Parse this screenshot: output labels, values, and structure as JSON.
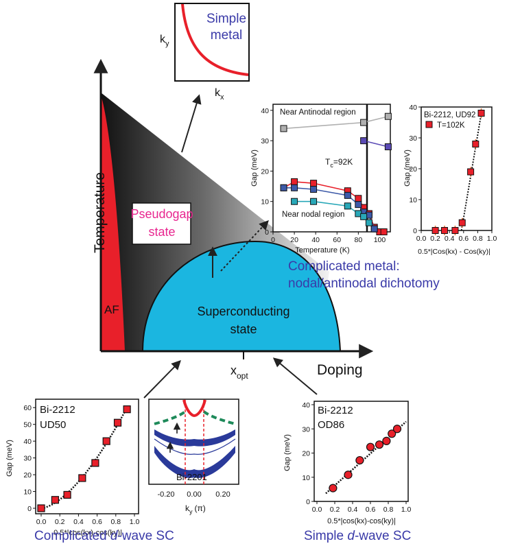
{
  "phase_diagram": {
    "y_axis_label": "Temperature",
    "x_axis_label": "Doping",
    "x_opt_label": "x",
    "x_opt_sub": "opt",
    "af_label": "AF",
    "pseudogap_line1": "Pseudogap",
    "pseudogap_line2": "state",
    "sc_line1": "Superconducting",
    "sc_line2": "state",
    "colors": {
      "af": "#e8202a",
      "sc": "#1bb6e0",
      "pseudogap_text": "#e8268f"
    }
  },
  "simple_metal_inset": {
    "title_line1": "Simple",
    "title_line2": "metal",
    "x_label": "k",
    "x_sub": "x",
    "y_label": "k",
    "y_sub": "y"
  },
  "inset_temperature": {
    "ylabel": "Gap (meV)",
    "xlabel": "Temperature (K)",
    "label_antinodal": "Near Antinodal region",
    "label_nodal": "Near nodal region",
    "tc_label_T": "T",
    "tc_label_sub": "c",
    "tc_label_rest": "=92K",
    "x_ticks": [
      "0",
      "20",
      "40",
      "60",
      "80",
      "100"
    ],
    "y_ticks": [
      "0",
      "10",
      "20",
      "30",
      "40"
    ]
  },
  "inset_ud92": {
    "title": "Bi-2212, UD92",
    "legend": "T=102K",
    "ylabel": "Gap (meV)",
    "xlabel": "0.5*|Cos(kx) - Cos(ky)|",
    "x_ticks": [
      "0.0",
      "0.2",
      "0.4",
      "0.6",
      "0.8",
      "1.0"
    ],
    "y_ticks": [
      "0",
      "10",
      "20",
      "30",
      "40"
    ]
  },
  "caption_metal_line1": "Complicated metal:",
  "caption_metal_line2": "nodal/antinodal dichotomy",
  "inset_ud50": {
    "title_line1": "Bi-2212",
    "title_line2": "UD50",
    "ylabel": "Gap (meV)",
    "xlabel": "0.5*|cos(kx)-cos(ky)|",
    "x_ticks": [
      "0.0",
      "0.2",
      "0.4",
      "0.6",
      "0.8",
      "1.0"
    ],
    "y_ticks": [
      "0",
      "10",
      "20",
      "30",
      "40",
      "50",
      "60"
    ]
  },
  "inset_2201": {
    "label": "Bi-2201",
    "xlabel_k": "k",
    "xlabel_sub": "y",
    "xlabel_unit": "(π)",
    "x_ticks": [
      "-0.20",
      "0.00",
      "0.20"
    ]
  },
  "inset_od86": {
    "title_line1": "Bi-2212",
    "title_line2": "OD86",
    "ylabel": "Gap (meV)",
    "xlabel": "0.5*|cos(kx)-cos(ky)|",
    "x_ticks": [
      "0.0",
      "0.2",
      "0.4",
      "0.6",
      "0.8",
      "1.0"
    ],
    "y_ticks": [
      "0",
      "10",
      "20",
      "30",
      "40"
    ]
  },
  "caption_complicated_d": {
    "pre": "Complicated ",
    "d": "d",
    "post": "-wave SC"
  },
  "caption_simple_d": {
    "pre": "Simple ",
    "d": "d",
    "post": "-wave SC"
  },
  "chart_data": [
    {
      "type": "scatter",
      "name": "gap-vs-temperature",
      "xlabel": "Temperature (K)",
      "ylabel": "Gap (meV)",
      "xlim": [
        0,
        110
      ],
      "ylim": [
        0,
        42
      ],
      "series": [
        {
          "color": "#b0b0b0",
          "x": [
            10,
            85,
            108
          ],
          "y": [
            34,
            36,
            38
          ]
        },
        {
          "color": "#5a4ab5",
          "x": [
            85,
            108
          ],
          "y": [
            30,
            28
          ]
        },
        {
          "color": "#e8202a",
          "x": [
            10,
            20,
            38,
            70,
            80,
            85,
            90,
            95,
            100,
            104
          ],
          "y": [
            14.5,
            16.5,
            16,
            13.5,
            11,
            8,
            6,
            1.5,
            0,
            0
          ]
        },
        {
          "color": "#3d5aa8",
          "x": [
            10,
            20,
            38,
            70,
            80,
            85,
            90,
            95
          ],
          "y": [
            14.5,
            14.5,
            14,
            12,
            9,
            6.5,
            5.5,
            1
          ]
        },
        {
          "color": "#29a8b8",
          "x": [
            20,
            38,
            70,
            80,
            85,
            90
          ],
          "y": [
            10,
            10,
            8.5,
            6,
            5,
            3
          ]
        }
      ]
    },
    {
      "type": "scatter",
      "name": "Bi-2212 UD92 T=102K",
      "xlim": [
        0,
        1
      ],
      "ylim": [
        0,
        40
      ],
      "x": [
        0.2,
        0.33,
        0.48,
        0.58,
        0.7,
        0.77,
        0.85
      ],
      "y": [
        0,
        0,
        0,
        2.5,
        19,
        28,
        38
      ]
    },
    {
      "type": "scatter",
      "name": "Bi-2212 UD50",
      "xlim": [
        0,
        1
      ],
      "ylim": [
        0,
        65
      ],
      "x": [
        0,
        0.15,
        0.28,
        0.44,
        0.58,
        0.7,
        0.82,
        0.92
      ],
      "y": [
        0,
        5,
        8,
        18,
        27,
        40,
        51,
        59
      ]
    },
    {
      "type": "scatter",
      "name": "Bi-2212 OD86",
      "xlim": [
        0,
        1
      ],
      "ylim": [
        0,
        40
      ],
      "x": [
        0.18,
        0.35,
        0.48,
        0.6,
        0.7,
        0.78,
        0.84,
        0.9
      ],
      "y": [
        5.5,
        11,
        17,
        22.5,
        23.5,
        25,
        28,
        30
      ]
    }
  ]
}
